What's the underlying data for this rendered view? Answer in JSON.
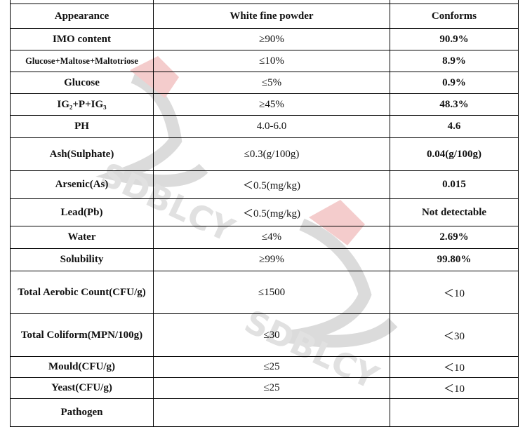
{
  "table": {
    "rows": [
      {
        "item": "",
        "spec": "",
        "result": ""
      },
      {
        "item": "Appearance",
        "spec": "White fine powder",
        "result": "Conforms"
      },
      {
        "item": "IMO content",
        "spec": "≥90%",
        "result": "90.9%"
      },
      {
        "item": "Glucose+Maltose+Maltotriose",
        "spec": "≤10%",
        "result": "8.9%"
      },
      {
        "item": "Glucose",
        "spec": "≤5%",
        "result": "0.9%"
      },
      {
        "item": "IG₂+P+IG₃",
        "spec": "≥45%",
        "result": "48.3%"
      },
      {
        "item": "PH",
        "spec": "4.0-6.0",
        "result": "4.6"
      },
      {
        "item": "Ash(Sulphate)",
        "spec": "≤0.3(g/100g)",
        "result": "0.04(g/100g)"
      },
      {
        "item": "Arsenic(As)",
        "spec": "＜0.5(mg/kg)",
        "result": "0.015"
      },
      {
        "item": "Lead(Pb)",
        "spec": "＜0.5(mg/kg)",
        "result": "Not detectable"
      },
      {
        "item": "Water",
        "spec": "≤4%",
        "result": "2.69%"
      },
      {
        "item": "Solubility",
        "spec": "≥99%",
        "result": "99.80%"
      },
      {
        "item": "Total Aerobic Count(CFU/g)",
        "spec": "≤1500",
        "result": "＜10"
      },
      {
        "item": "Total Coliform(MPN/100g)",
        "spec": "≤30",
        "result": "＜30"
      },
      {
        "item": "Mould(CFU/g)",
        "spec": "≤25",
        "result": "＜10"
      },
      {
        "item": "Yeast(CFU/g)",
        "spec": "≤25",
        "result": "＜10"
      },
      {
        "item": "Pathogen",
        "spec": "",
        "result": ""
      }
    ]
  },
  "watermark": {
    "text": "SDBLCY",
    "color": "#d9534f"
  }
}
